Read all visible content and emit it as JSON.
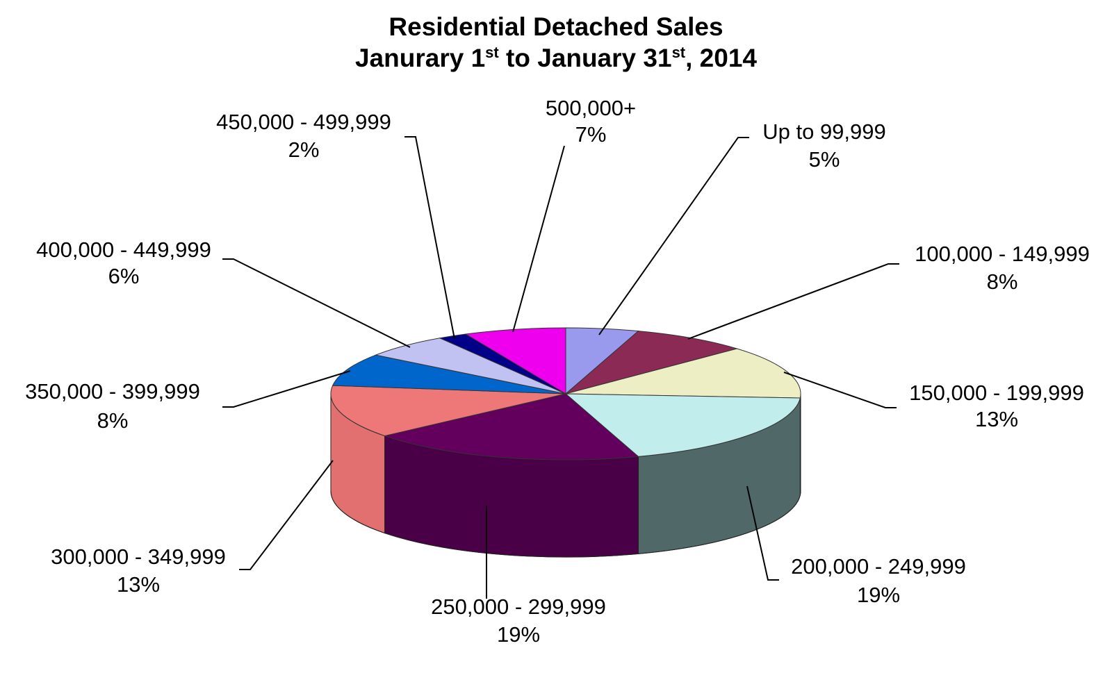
{
  "chart_data": {
    "type": "pie",
    "title": {
      "line1": "Residential Detached Sales",
      "line2": {
        "p1": "Janurary 1",
        "s1": "st",
        "p2": " to January 31",
        "s2": "st",
        "p3": ", 2014"
      }
    },
    "slices": [
      {
        "label": "Up to 99,999",
        "pct_text": "5%",
        "value": 5,
        "color": "#9999EE",
        "side": "#6B6BB0"
      },
      {
        "label": "100,000 - 149,999",
        "pct_text": "8%",
        "value": 8,
        "color": "#8B2A55",
        "side": "#5E1C39"
      },
      {
        "label": "150,000 - 199,999",
        "pct_text": "13%",
        "value": 13,
        "color": "#EEEEC4",
        "side": "#B5B590"
      },
      {
        "label": "200,000 - 249,999",
        "pct_text": "19%",
        "value": 19,
        "color": "#C2EDED",
        "side": "#506868"
      },
      {
        "label": "250,000 - 299,999",
        "pct_text": "19%",
        "value": 19,
        "color": "#63005E",
        "side": "#4A0046"
      },
      {
        "label": "300,000 - 349,999",
        "pct_text": "13%",
        "value": 13,
        "color": "#EE7777",
        "side": "#E27070"
      },
      {
        "label": "350,000 - 399,999",
        "pct_text": "8%",
        "value": 8,
        "color": "#0066CC",
        "side": "#004C99"
      },
      {
        "label": "400,000 - 449,999",
        "pct_text": "6%",
        "value": 6,
        "color": "#C2C2F2",
        "side": "#9090C0"
      },
      {
        "label": "450,000 - 499,999",
        "pct_text": "2%",
        "value": 2,
        "color": "#000088",
        "side": "#000060"
      },
      {
        "label": "500,000+",
        "pct_text": "7%",
        "value": 7,
        "color": "#EE00EE",
        "side": "#AA00AA"
      }
    ]
  }
}
